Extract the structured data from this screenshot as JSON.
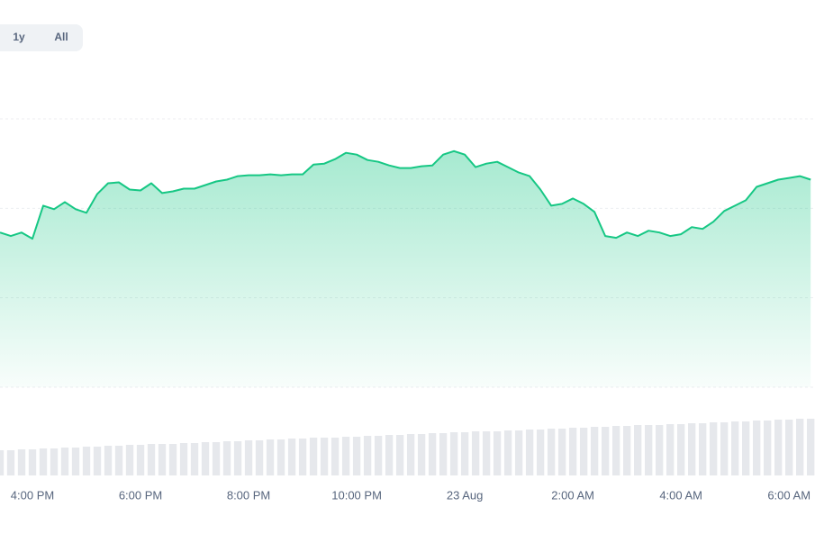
{
  "range_buttons": [
    "1y",
    "All"
  ],
  "chart_data": {
    "type": "area",
    "x": [
      15.4,
      15.6,
      15.8,
      16,
      16.2,
      16.4,
      16.6,
      16.8,
      17,
      17.2,
      17.4,
      17.6,
      17.8,
      18,
      18.2,
      18.4,
      18.6,
      18.8,
      19,
      19.2,
      19.4,
      19.6,
      19.8,
      20,
      20.2,
      20.4,
      20.6,
      20.8,
      21,
      21.2,
      21.4,
      21.6,
      21.8,
      22,
      22.2,
      22.4,
      22.6,
      22.8,
      23,
      23.2,
      23.4,
      23.6,
      23.8,
      24,
      24.2,
      24.4,
      24.6,
      24.8,
      25,
      25.2,
      25.4,
      25.6,
      25.8,
      26,
      26.2,
      26.4,
      26.6,
      26.8,
      27,
      27.2,
      27.4,
      27.6,
      27.8,
      28,
      28.2,
      28.4,
      28.6,
      28.8,
      29,
      29.2,
      29.4,
      29.6,
      29.8,
      30,
      30.2,
      30.4
    ],
    "series": [
      {
        "color": "#16c784",
        "values": [
          1.73,
          1.69,
          1.73,
          1.66,
          2.03,
          1.99,
          2.07,
          1.99,
          1.95,
          2.16,
          2.28,
          2.29,
          2.21,
          2.2,
          2.28,
          2.17,
          2.19,
          2.22,
          2.22,
          2.26,
          2.3,
          2.32,
          2.36,
          2.37,
          2.37,
          2.38,
          2.37,
          2.38,
          2.38,
          2.49,
          2.5,
          2.55,
          2.62,
          2.6,
          2.54,
          2.52,
          2.48,
          2.45,
          2.45,
          2.47,
          2.48,
          2.6,
          2.64,
          2.6,
          2.46,
          2.5,
          2.52,
          2.46,
          2.4,
          2.36,
          2.21,
          2.03,
          2.05,
          2.11,
          2.05,
          1.96,
          1.69,
          1.67,
          1.73,
          1.69,
          1.75,
          1.73,
          1.69,
          1.71,
          1.79,
          1.77,
          1.85,
          1.97,
          2.03,
          2.09,
          2.24,
          2.28,
          2.32,
          2.34,
          2.36,
          2.32
        ]
      },
      {
        "type": "bar",
        "axis": "y2",
        "color": "#e6e8ec",
        "values": [
          28,
          28,
          29,
          29,
          30,
          30,
          31,
          31,
          32,
          32,
          33,
          33,
          34,
          34,
          35,
          35,
          35,
          36,
          36,
          37,
          37,
          38,
          38,
          39,
          39,
          40,
          40,
          41,
          41,
          42,
          42,
          42,
          43,
          43,
          44,
          44,
          45,
          45,
          46,
          46,
          47,
          47,
          48,
          48,
          49,
          49,
          49,
          50,
          50,
          51,
          51,
          52,
          52,
          53,
          53,
          54,
          54,
          55,
          55,
          56,
          56,
          56,
          57,
          57,
          58,
          58,
          59,
          59,
          60,
          60,
          61,
          61,
          62,
          62,
          63,
          63
        ]
      }
    ],
    "xlim": [
      15.4,
      30.48
    ],
    "xticks": [
      {
        "value": 16,
        "label": "4:00 PM"
      },
      {
        "value": 18,
        "label": "6:00 PM"
      },
      {
        "value": 20,
        "label": "8:00 PM"
      },
      {
        "value": 22,
        "label": "10:00 PM"
      },
      {
        "value": 24,
        "label": "23 Aug"
      },
      {
        "value": 26,
        "label": "2:00 AM"
      },
      {
        "value": 28,
        "label": "4:00 AM"
      },
      {
        "value": 30,
        "label": "6:00 AM"
      }
    ],
    "ylim": [
      0,
      3
    ],
    "yticks": [
      0,
      1,
      2,
      3
    ],
    "grid": true,
    "y2lim": [
      0,
      100
    ]
  }
}
